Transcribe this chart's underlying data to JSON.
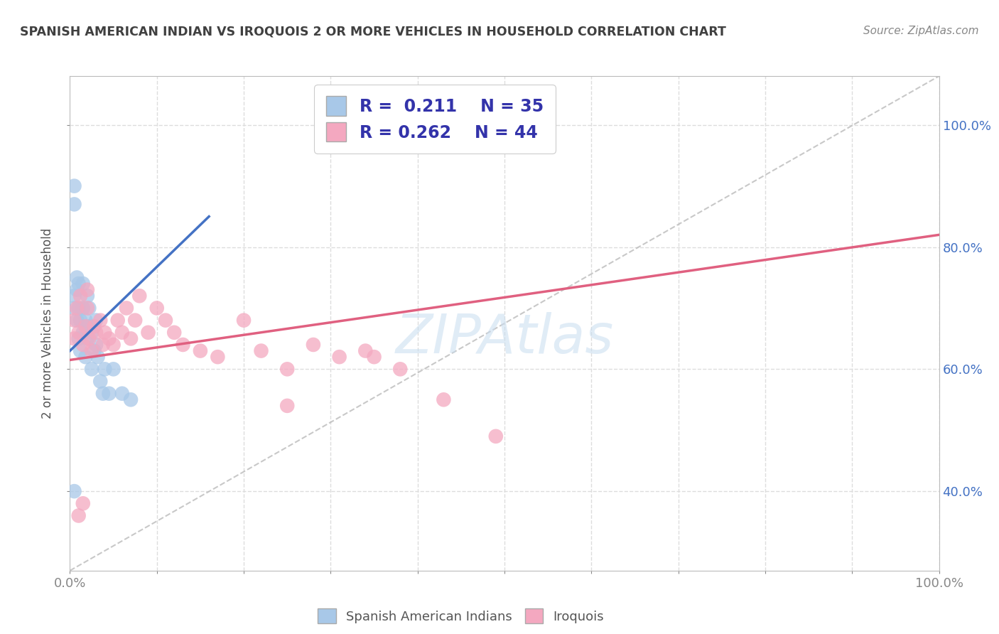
{
  "title": "SPANISH AMERICAN INDIAN VS IROQUOIS 2 OR MORE VEHICLES IN HOUSEHOLD CORRELATION CHART",
  "source": "Source: ZipAtlas.com",
  "ylabel": "2 or more Vehicles in Household",
  "watermark": "ZIPAtlas",
  "blue_R": 0.211,
  "blue_N": 35,
  "pink_R": 0.262,
  "pink_N": 44,
  "blue_label": "Spanish American Indians",
  "pink_label": "Iroquois",
  "blue_color": "#a8c8e8",
  "pink_color": "#f4a8c0",
  "blue_line_color": "#4472c4",
  "pink_line_color": "#e06080",
  "title_color": "#404040",
  "source_color": "#888888",
  "legend_R_color": "#3366cc",
  "legend_N_color": "#cc3333",
  "xlim": [
    0.0,
    1.0
  ],
  "ylim": [
    0.27,
    1.08
  ],
  "xticks": [
    0.0,
    0.1,
    0.2,
    0.3,
    0.4,
    0.5,
    0.6,
    0.7,
    0.8,
    0.9,
    1.0
  ],
  "yticks_right": [
    0.4,
    0.6,
    0.8,
    1.0
  ],
  "ytick_labels_right": [
    "40.0%",
    "60.0%",
    "80.0%",
    "100.0%"
  ],
  "grid_hlines": [
    0.4,
    0.6,
    0.8,
    1.0
  ],
  "grid_vlines": [
    0.1,
    0.2,
    0.3,
    0.4,
    0.5,
    0.6,
    0.7,
    0.8,
    0.9,
    1.0
  ],
  "dashed_line_color": "#bbbbbb",
  "grid_color": "#dddddd",
  "background_color": "#ffffff",
  "blue_x": [
    0.005,
    0.005,
    0.008,
    0.008,
    0.008,
    0.01,
    0.01,
    0.01,
    0.012,
    0.012,
    0.015,
    0.015,
    0.015,
    0.018,
    0.018,
    0.02,
    0.02,
    0.022,
    0.022,
    0.025,
    0.025,
    0.028,
    0.03,
    0.03,
    0.032,
    0.035,
    0.038,
    0.04,
    0.045,
    0.05,
    0.06,
    0.07,
    0.005,
    0.005,
    0.005
  ],
  "blue_y": [
    0.7,
    0.72,
    0.68,
    0.73,
    0.75,
    0.65,
    0.7,
    0.74,
    0.63,
    0.68,
    0.66,
    0.7,
    0.74,
    0.62,
    0.68,
    0.65,
    0.72,
    0.67,
    0.7,
    0.6,
    0.66,
    0.63,
    0.64,
    0.68,
    0.62,
    0.58,
    0.56,
    0.6,
    0.56,
    0.6,
    0.56,
    0.55,
    0.4,
    0.87,
    0.9
  ],
  "pink_x": [
    0.005,
    0.005,
    0.008,
    0.01,
    0.012,
    0.015,
    0.018,
    0.02,
    0.022,
    0.025,
    0.028,
    0.03,
    0.035,
    0.038,
    0.04,
    0.045,
    0.05,
    0.055,
    0.06,
    0.065,
    0.07,
    0.075,
    0.08,
    0.09,
    0.1,
    0.11,
    0.12,
    0.13,
    0.15,
    0.17,
    0.2,
    0.22,
    0.25,
    0.28,
    0.31,
    0.34,
    0.35,
    0.38,
    0.43,
    0.49,
    0.01,
    0.015,
    0.02,
    0.25
  ],
  "pink_y": [
    0.65,
    0.68,
    0.7,
    0.66,
    0.72,
    0.64,
    0.67,
    0.7,
    0.65,
    0.63,
    0.67,
    0.66,
    0.68,
    0.64,
    0.66,
    0.65,
    0.64,
    0.68,
    0.66,
    0.7,
    0.65,
    0.68,
    0.72,
    0.66,
    0.7,
    0.68,
    0.66,
    0.64,
    0.63,
    0.62,
    0.68,
    0.63,
    0.6,
    0.64,
    0.62,
    0.63,
    0.62,
    0.6,
    0.55,
    0.49,
    0.36,
    0.38,
    0.73,
    0.54
  ],
  "blue_line_x": [
    0.0,
    0.16
  ],
  "blue_line_y": [
    0.63,
    0.85
  ],
  "pink_line_x": [
    0.0,
    1.0
  ],
  "pink_line_y": [
    0.615,
    0.82
  ]
}
